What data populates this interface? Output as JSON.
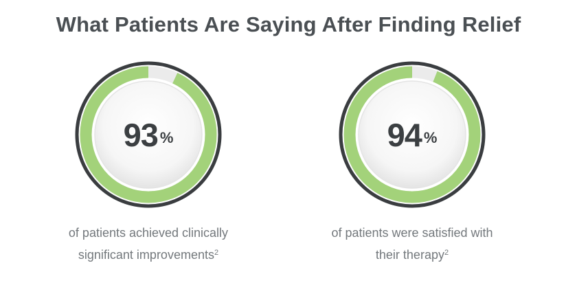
{
  "header": {
    "title": "What Patients Are Saying After Finding Relief"
  },
  "colors": {
    "ring_fill": "#a3d27a",
    "ring_track": "#ebebeb",
    "ring_border": "#3a3d40",
    "title": "#4a4f53",
    "caption": "#73787c"
  },
  "stats": [
    {
      "value": "93",
      "unit": "%",
      "fraction": 0.93,
      "caption_line1": "of patients achieved clinically",
      "caption_line2": "significant improvements",
      "footnote": "2"
    },
    {
      "value": "94",
      "unit": "%",
      "fraction": 0.94,
      "caption_line1": "of patients were satisfied with",
      "caption_line2": "their therapy",
      "footnote": "2"
    }
  ]
}
